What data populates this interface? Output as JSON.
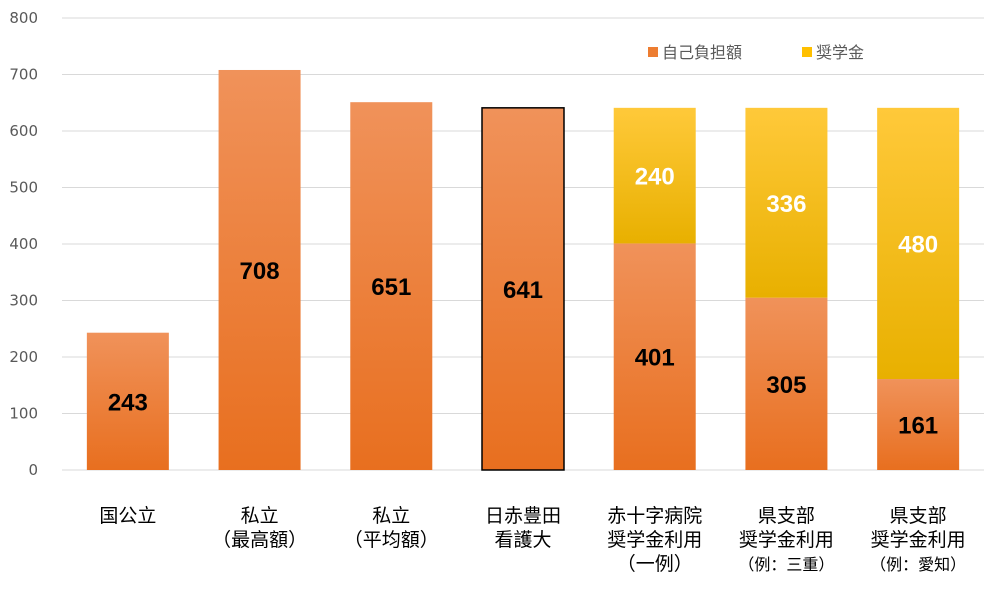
{
  "chart_data": {
    "type": "bar",
    "stacked": true,
    "ylim": [
      0,
      800
    ],
    "yticks": [
      "0",
      "100",
      "200",
      "300",
      "400",
      "500",
      "600",
      "700",
      "800"
    ],
    "grid": true,
    "legend_position": "top-right",
    "categories": [
      [
        "国公立"
      ],
      [
        "私立",
        "（最高額）"
      ],
      [
        "私立",
        "（平均額）"
      ],
      [
        "日赤豊田",
        "看護大"
      ],
      [
        "赤十字病院",
        "奨学金利用",
        "（一例）"
      ],
      [
        "県支部",
        "奨学金利用",
        "（例：三重）"
      ],
      [
        "県支部",
        "奨学金利用",
        "（例：愛知）"
      ]
    ],
    "series": [
      {
        "name": "自己負担額",
        "color": "#ED7D31",
        "values": [
          243,
          708,
          651,
          641,
          401,
          305,
          161
        ],
        "labels": [
          "243",
          "708",
          "651",
          "641",
          "401",
          "305",
          "161"
        ]
      },
      {
        "name": "奨学金",
        "color": "#FFC000",
        "values": [
          0,
          0,
          0,
          0,
          240,
          336,
          480
        ],
        "labels": [
          "",
          "",
          "",
          "",
          "240",
          "336",
          "480"
        ]
      }
    ],
    "highlighted_category_index": 3
  }
}
